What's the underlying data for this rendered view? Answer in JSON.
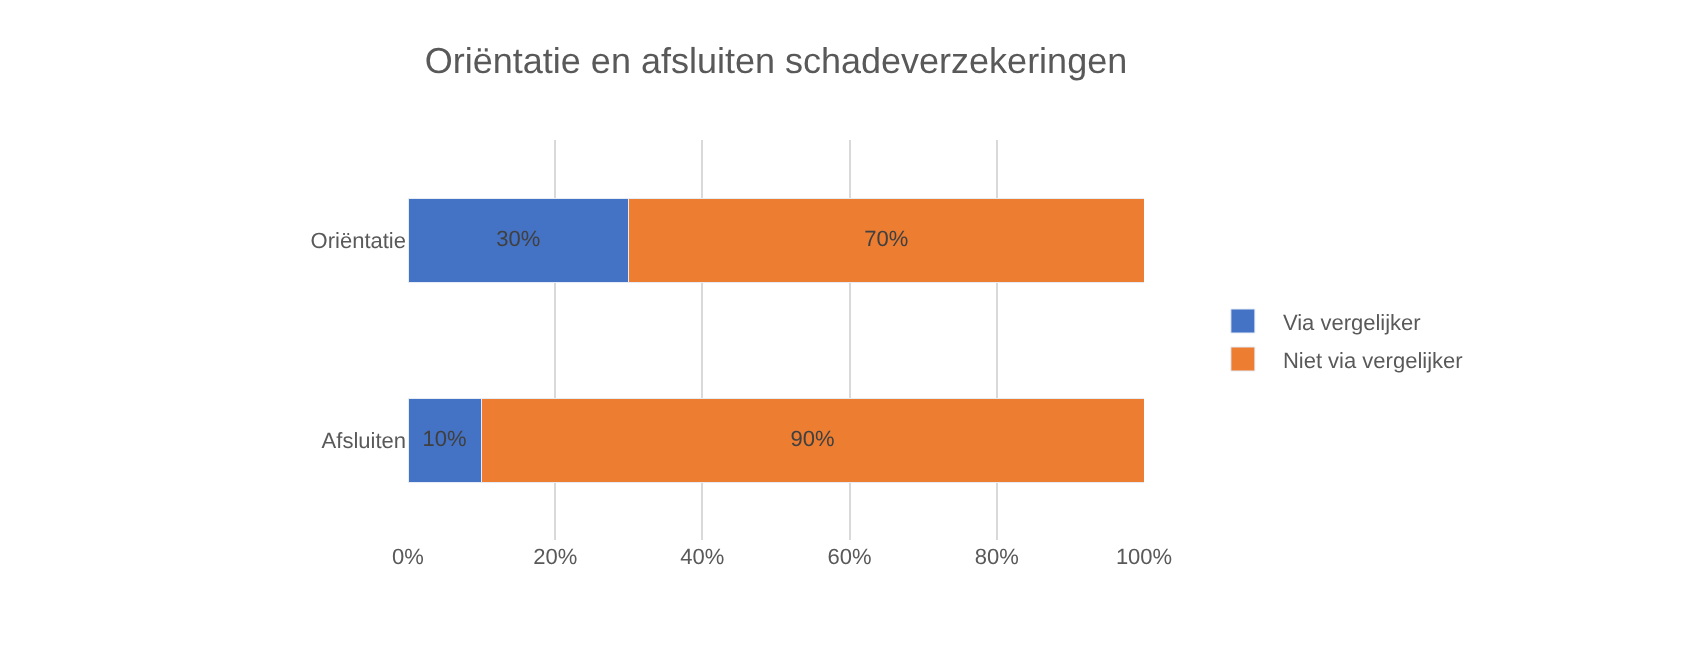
{
  "chart_data": {
    "type": "bar",
    "title": "Oriëntatie en afsluiten schadeverzekeringen",
    "orientation": "horizontal",
    "stacked": true,
    "categories": [
      "Oriëntatie",
      "Afsluiten"
    ],
    "series": [
      {
        "name": "Via vergelijker",
        "color": "#4472c4",
        "values": [
          30,
          10
        ],
        "value_labels": [
          "30%",
          "10%"
        ]
      },
      {
        "name": "Niet via vergelijker",
        "color": "#ed7d31",
        "values": [
          70,
          90
        ],
        "value_labels": [
          "70%",
          "90%"
        ]
      }
    ],
    "xlim": [
      0,
      100
    ],
    "xticks": [
      {
        "value": 0,
        "label": "0%"
      },
      {
        "value": 20,
        "label": "20%"
      },
      {
        "value": 40,
        "label": "40%"
      },
      {
        "value": 60,
        "label": "60%"
      },
      {
        "value": 80,
        "label": "80%"
      },
      {
        "value": 100,
        "label": "100%"
      }
    ],
    "grid": "x",
    "legend": "right"
  }
}
